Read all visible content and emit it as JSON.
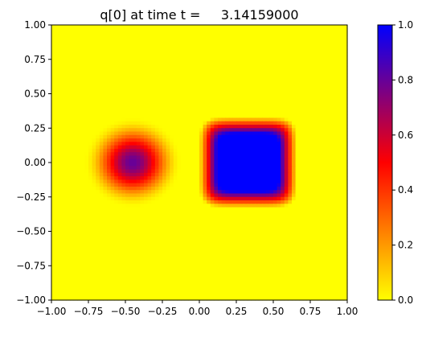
{
  "chart_data": {
    "type": "heatmap",
    "title": "q[0] at time t =     3.14159000",
    "xlabel": "",
    "ylabel": "",
    "xlim": [
      -1.0,
      1.0
    ],
    "ylim": [
      -1.0,
      1.0
    ],
    "x_ticks": [
      -1.0,
      -0.75,
      -0.5,
      -0.25,
      0.0,
      0.25,
      0.5,
      0.75,
      1.0
    ],
    "x_tick_labels": [
      "−1.00",
      "−0.75",
      "−0.50",
      "−0.25",
      "0.00",
      "0.25",
      "0.50",
      "0.75",
      "1.00"
    ],
    "y_ticks": [
      -1.0,
      -0.75,
      -0.5,
      -0.25,
      0.0,
      0.25,
      0.5,
      0.75,
      1.0
    ],
    "y_tick_labels": [
      "−1.00",
      "−0.75",
      "−0.50",
      "−0.25",
      "0.00",
      "0.25",
      "0.50",
      "0.75",
      "1.00"
    ],
    "grid": false,
    "grid_cells": [
      80,
      80
    ],
    "colormap": {
      "name": "yellow-red-blue",
      "stops": [
        {
          "value": 0.0,
          "color": "#ffff00"
        },
        {
          "value": 0.5,
          "color": "#ff0000"
        },
        {
          "value": 1.0,
          "color": "#0000ff"
        }
      ]
    },
    "colorbar": {
      "range": [
        0.0,
        1.0
      ],
      "ticks": [
        0.0,
        0.2,
        0.4,
        0.6,
        0.8,
        1.0
      ],
      "tick_labels": [
        "0.0",
        "0.2",
        "0.4",
        "0.6",
        "0.8",
        "1.0"
      ],
      "placement": "right"
    },
    "features": [
      {
        "shape": "smooth-disc",
        "center_x": -0.45,
        "center_y": 0.0,
        "radius": 0.33,
        "peak_value": 0.8
      },
      {
        "shape": "rounded-square",
        "center_x": 0.33,
        "center_y": 0.0,
        "half_width": 0.27,
        "peak_value": 1.0
      }
    ]
  }
}
